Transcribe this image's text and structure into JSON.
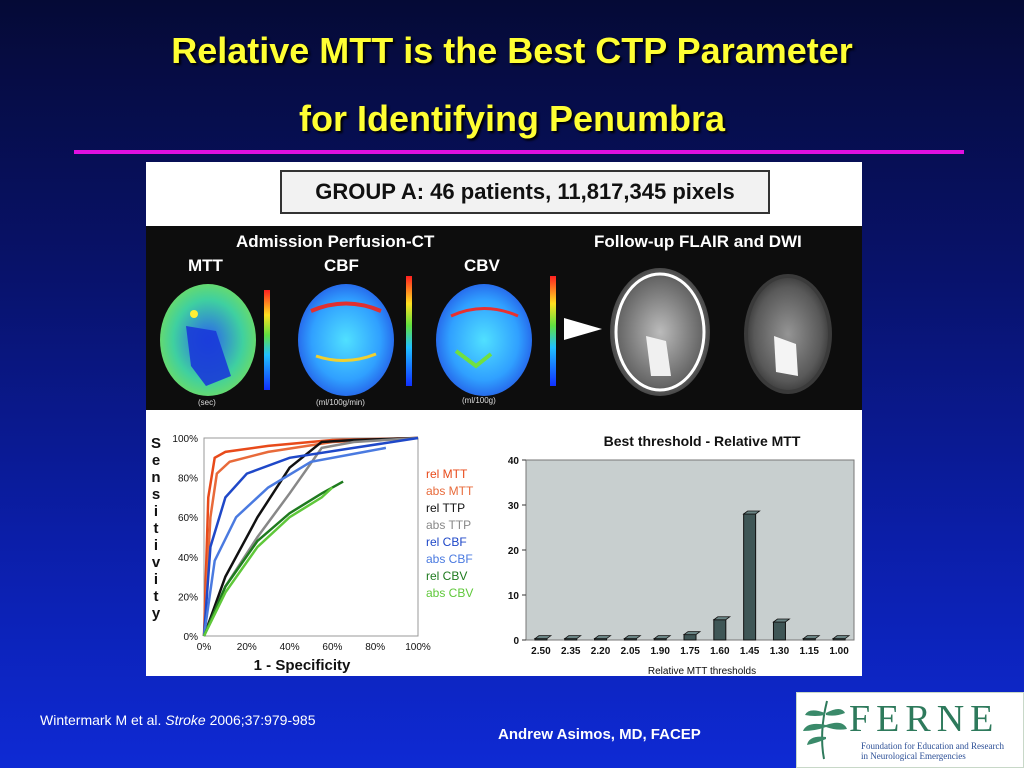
{
  "slide": {
    "title_line1": "Relative MTT is the Best CTP Parameter",
    "title_line2": "for Identifying Penumbra",
    "citation_prefix": "Wintermark M et al. ",
    "citation_journal": "Stroke",
    "citation_suffix": " 2006;37:979-985",
    "author": "Andrew Asimos, MD, FACEP",
    "logo_word": "FERNE",
    "logo_sub_line1": "Foundation for Education and Research",
    "logo_sub_line2": "in Neurological Emergencies",
    "accent_color": "#e010e0",
    "title_color": "#ffff33"
  },
  "figure": {
    "group_label": "GROUP A: 46 patients, 11,817,345 pixels",
    "perfusion_header": "Admission Perfusion-CT",
    "followup_header": "Follow-up FLAIR and DWI",
    "maps": [
      {
        "label": "MTT",
        "unit": "(sec)"
      },
      {
        "label": "CBF",
        "unit": "(ml/100g/min)"
      },
      {
        "label": "CBV",
        "unit": "(ml/100g)"
      }
    ]
  },
  "chart_data": [
    {
      "type": "line",
      "title": "",
      "xlabel": "1 - Specificity",
      "ylabel": "Sensitivity",
      "xlim": [
        0,
        100
      ],
      "ylim": [
        0,
        100
      ],
      "x_ticks": [
        "0%",
        "20%",
        "40%",
        "60%",
        "80%",
        "100%"
      ],
      "y_ticks": [
        "0%",
        "20%",
        "40%",
        "60%",
        "80%",
        "100%"
      ],
      "legend_position": "right",
      "series": [
        {
          "name": "rel MTT",
          "color": "#e84a1a",
          "x": [
            0,
            2,
            5,
            10,
            30,
            60,
            100
          ],
          "y": [
            0,
            70,
            90,
            93,
            96,
            99,
            100
          ]
        },
        {
          "name": "abs MTT",
          "color": "#e86a3a",
          "x": [
            0,
            3,
            6,
            12,
            30,
            60,
            100
          ],
          "y": [
            0,
            60,
            82,
            88,
            93,
            98,
            100
          ]
        },
        {
          "name": "rel TTP",
          "color": "#111111",
          "x": [
            0,
            10,
            25,
            40,
            55,
            70,
            100
          ],
          "y": [
            0,
            30,
            60,
            85,
            98,
            99,
            100
          ]
        },
        {
          "name": "abs TTP",
          "color": "#888888",
          "x": [
            0,
            10,
            25,
            40,
            55,
            70,
            100
          ],
          "y": [
            0,
            25,
            50,
            72,
            95,
            98,
            100
          ]
        },
        {
          "name": "rel CBF",
          "color": "#1f48c8",
          "x": [
            0,
            3,
            10,
            20,
            40,
            70,
            100
          ],
          "y": [
            0,
            45,
            70,
            82,
            90,
            95,
            100
          ]
        },
        {
          "name": "abs CBF",
          "color": "#4a7ae0",
          "x": [
            0,
            5,
            15,
            30,
            50,
            75,
            85
          ],
          "y": [
            0,
            38,
            60,
            75,
            88,
            93,
            95
          ]
        },
        {
          "name": "rel CBV",
          "color": "#1e7a1e",
          "x": [
            0,
            10,
            25,
            40,
            55,
            65
          ],
          "y": [
            0,
            25,
            48,
            62,
            72,
            78
          ]
        },
        {
          "name": "abs CBV",
          "color": "#5fc83a",
          "x": [
            0,
            10,
            25,
            40,
            55,
            60
          ],
          "y": [
            0,
            22,
            45,
            60,
            70,
            75
          ]
        }
      ]
    },
    {
      "type": "bar",
      "title": "Best threshold - Relative MTT",
      "xlabel": "Relative MTT thresholds",
      "ylabel": "",
      "ylim": [
        0,
        40
      ],
      "y_ticks": [
        0,
        10,
        20,
        30,
        40
      ],
      "categories": [
        "2.50",
        "2.35",
        "2.20",
        "2.05",
        "1.90",
        "1.75",
        "1.60",
        "1.45",
        "1.30",
        "1.15",
        "1.00"
      ],
      "values": [
        0.3,
        0.3,
        0.3,
        0.3,
        0.3,
        1.2,
        4.5,
        28,
        4,
        0.3,
        0.3
      ],
      "bar_color": "#3f5656",
      "background": "#c8cfcf"
    }
  ]
}
